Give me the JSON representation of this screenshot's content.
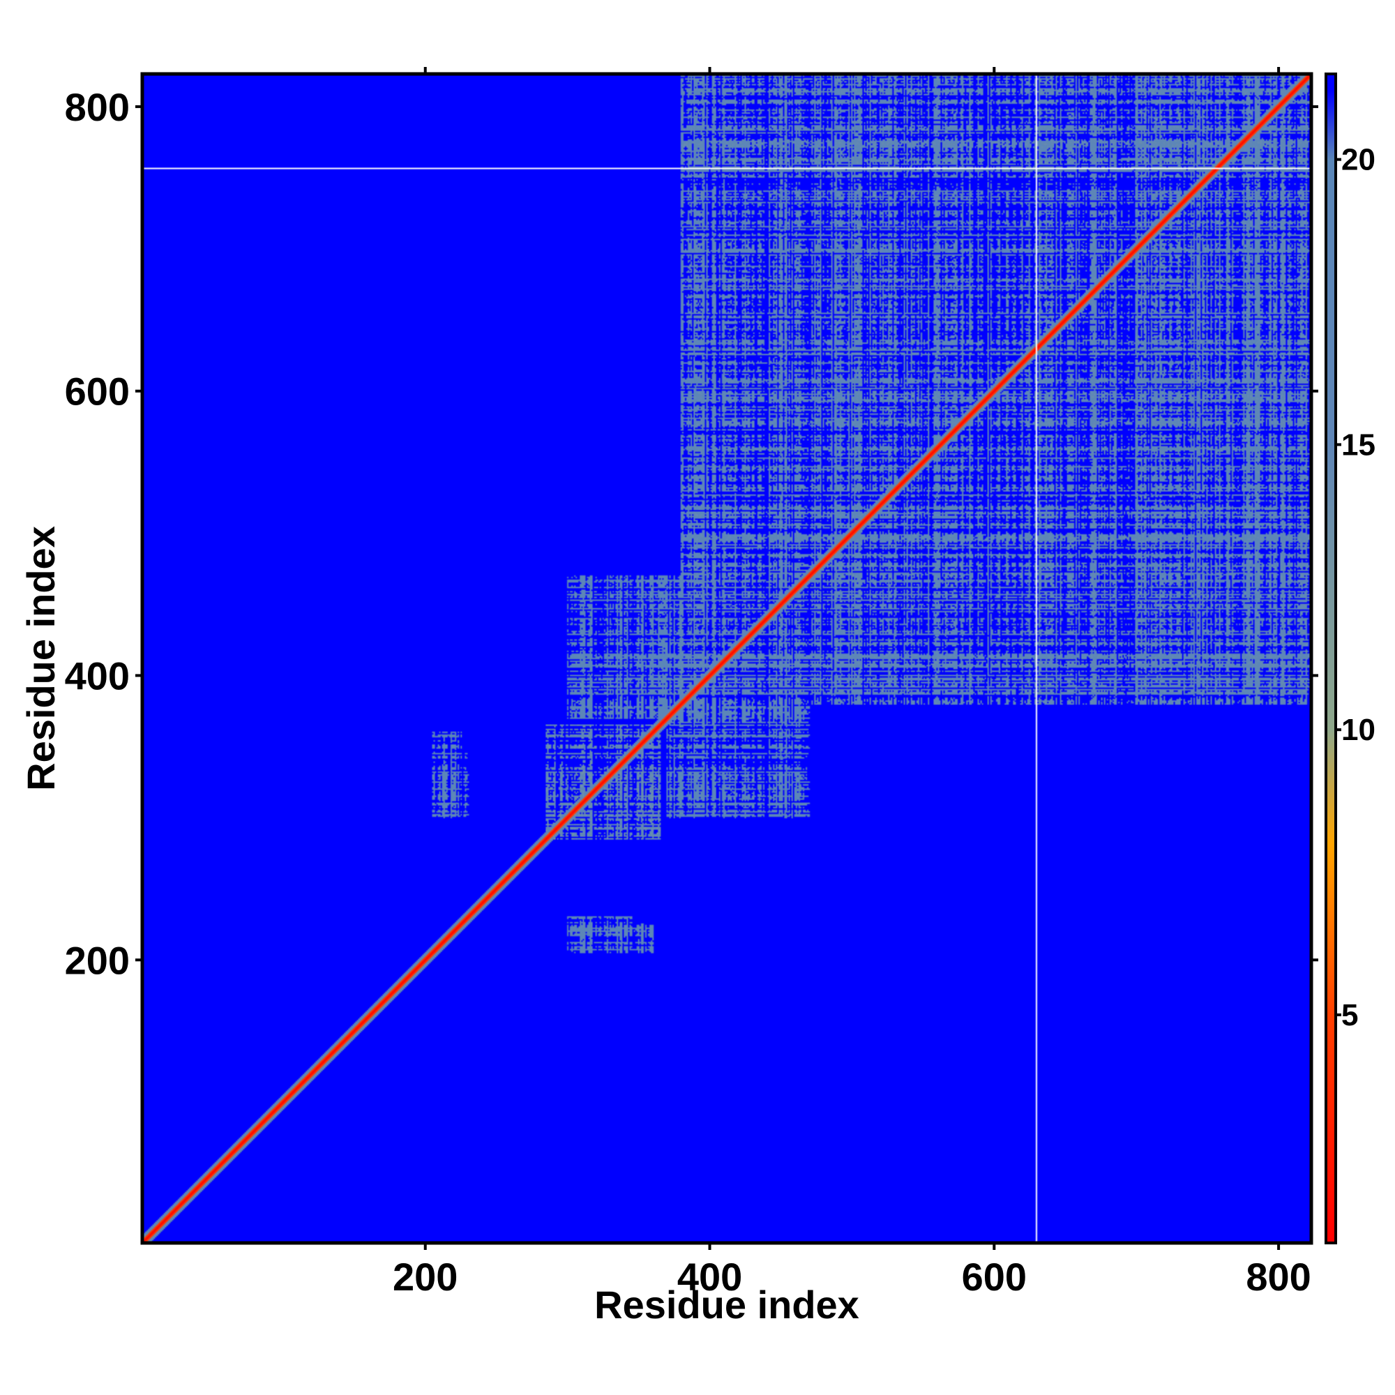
{
  "chart_data": {
    "type": "heatmap",
    "title": "",
    "xlabel": "Residue index",
    "ylabel": "Residue index",
    "xlim": [
      1,
      823
    ],
    "ylim": [
      1,
      823
    ],
    "x_ticks": [
      200,
      400,
      600,
      800
    ],
    "y_ticks": [
      200,
      400,
      600,
      800
    ],
    "x_tick_labels": [
      "200",
      "400",
      "600",
      "800"
    ],
    "y_tick_labels": [
      "200",
      "400",
      "600",
      "800"
    ],
    "colorbar": {
      "range": [
        1,
        21.5
      ],
      "ticks": [
        5,
        10,
        15,
        20
      ],
      "tick_labels": [
        "5",
        "10",
        "15",
        "20"
      ],
      "stops": [
        {
          "value": 1,
          "color": "#ff0000"
        },
        {
          "value": 5,
          "color": "#ff4000"
        },
        {
          "value": 8,
          "color": "#ffa500"
        },
        {
          "value": 10,
          "color": "#8fa88a"
        },
        {
          "value": 15,
          "color": "#5f86b7"
        },
        {
          "value": 20,
          "color": "#5a86b8"
        },
        {
          "value": 21.2,
          "color": "#0000ff"
        }
      ]
    },
    "background_value": 21.2,
    "diagonal_value": 1,
    "masked_lines": {
      "x": 630,
      "y": 757,
      "color": "#ffffff"
    },
    "regions": [
      {
        "x_range": [
          380,
          823
        ],
        "y_range": [
          380,
          823
        ],
        "mean_value": 16,
        "description": "dense contact block"
      },
      {
        "x_range": [
          285,
          365
        ],
        "y_range": [
          285,
          365
        ],
        "mean_value": 15
      },
      {
        "x_range": [
          370,
          470
        ],
        "y_range": [
          300,
          380
        ],
        "mean_value": 18
      },
      {
        "x_range": [
          300,
          360
        ],
        "y_range": [
          205,
          225
        ],
        "mean_value": 18
      },
      {
        "x_range": [
          205,
          230
        ],
        "y_range": [
          300,
          345
        ],
        "mean_value": 18
      }
    ]
  }
}
